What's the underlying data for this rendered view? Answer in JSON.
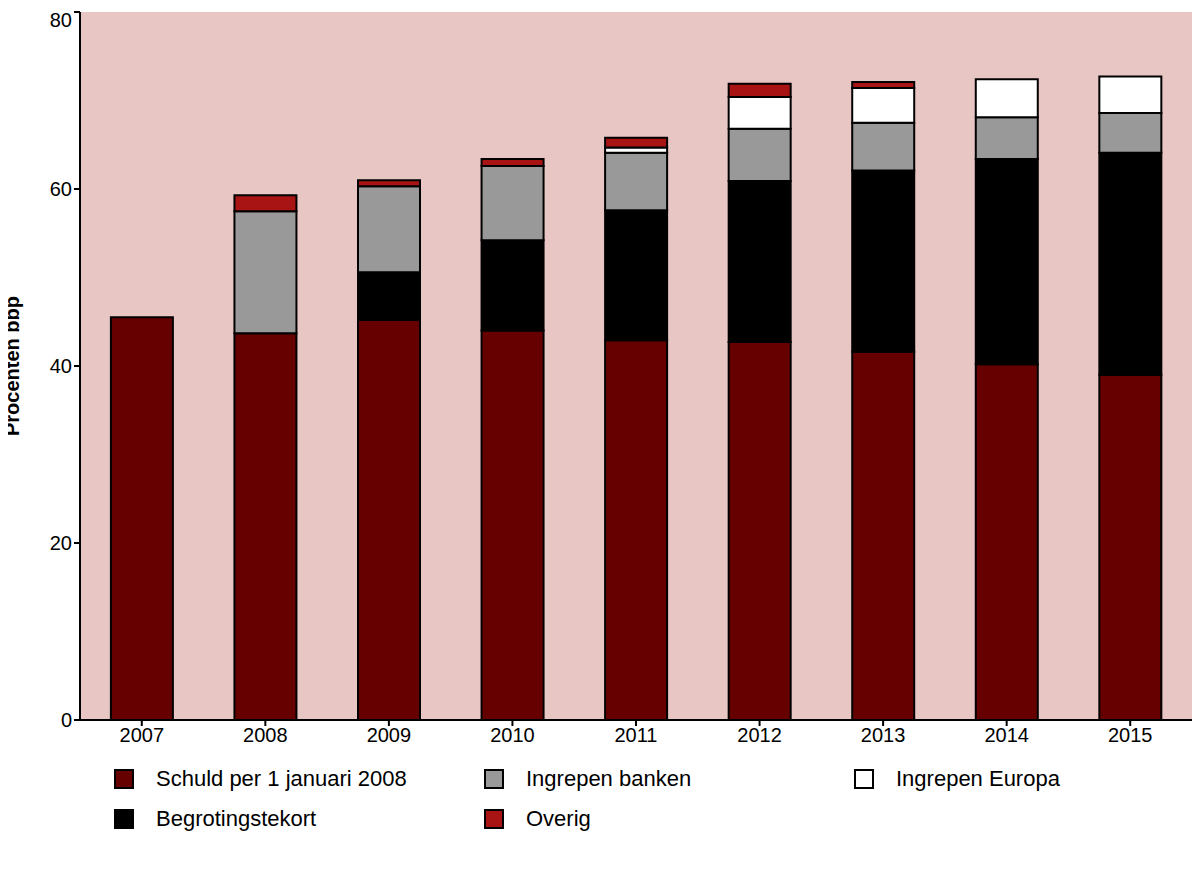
{
  "chart_data": {
    "type": "bar",
    "stacked": true,
    "ylabel": "Procenten bbp",
    "categories": [
      "2007",
      "2008",
      "2009",
      "2010",
      "2011",
      "2012",
      "2013",
      "2014",
      "2015"
    ],
    "ylim": [
      0,
      80
    ],
    "yticks": [
      0,
      20,
      40,
      60,
      80
    ],
    "grid": false,
    "legend": "bottom",
    "series": [
      {
        "name": "Schuld per 1 januari 2008",
        "color": "#660000",
        "values": [
          45.5,
          43.7,
          45.2,
          44.0,
          42.9,
          42.7,
          41.6,
          40.2,
          39.0
        ]
      },
      {
        "name": "Begrotingstekort",
        "color": "#000000",
        "values": [
          0,
          0,
          5.4,
          10.2,
          14.7,
          18.2,
          20.5,
          23.2,
          25.1
        ]
      },
      {
        "name": "Ingrepen banken",
        "color": "#999999",
        "values": [
          0,
          13.8,
          9.7,
          8.4,
          6.5,
          5.9,
          5.4,
          4.7,
          4.5
        ]
      },
      {
        "name": "Ingrepen Europa",
        "color": "#ffffff",
        "values": [
          0,
          0,
          0,
          0,
          0.6,
          3.6,
          3.9,
          4.3,
          4.1
        ]
      },
      {
        "name": "Overig",
        "color": "#a81414",
        "values": [
          0,
          1.8,
          0.7,
          0.8,
          1.1,
          1.5,
          0.7,
          0,
          0
        ]
      }
    ]
  }
}
